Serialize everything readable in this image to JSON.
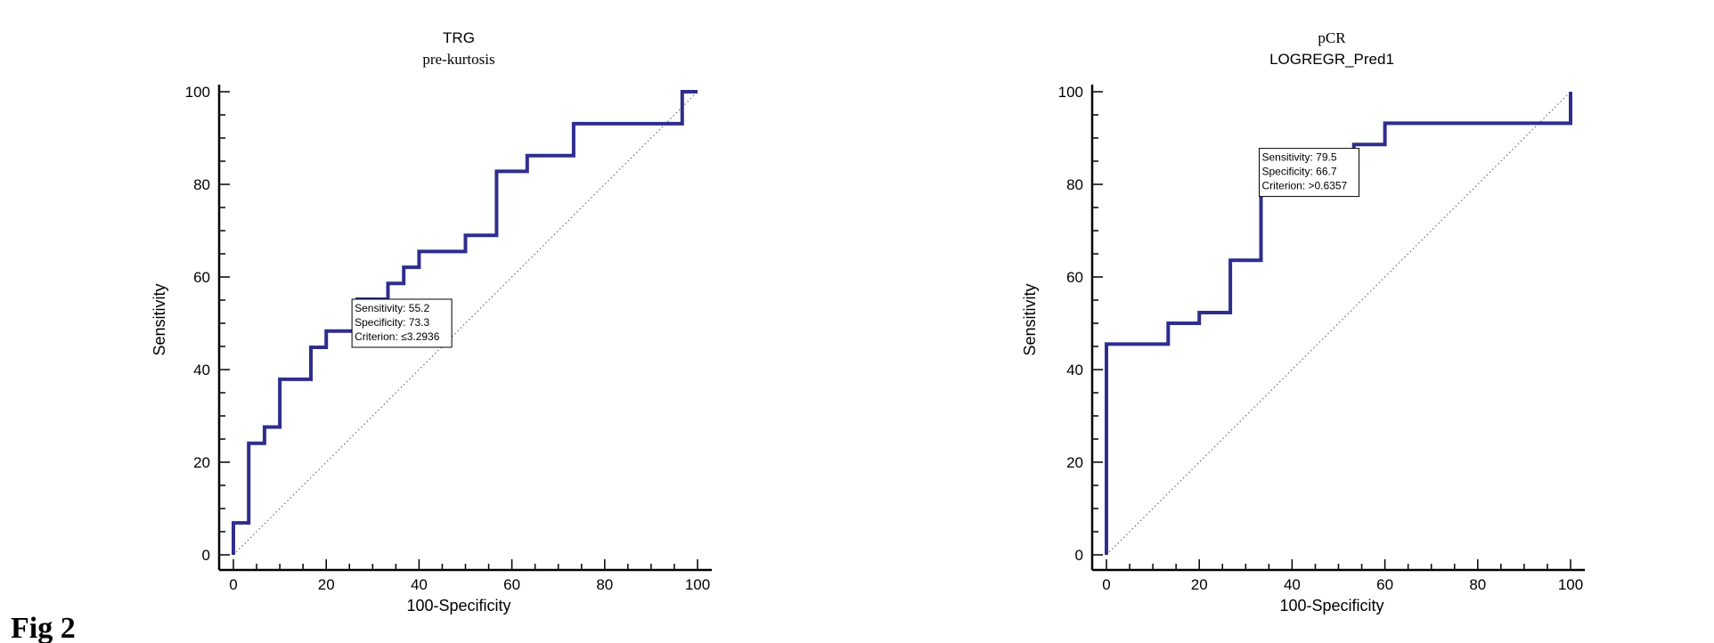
{
  "figure_label": "Fig 2",
  "chart_data": [
    {
      "type": "line",
      "title": "TRG",
      "subtitle": "pre-kurtosis",
      "xlabel": "100-Specificity",
      "ylabel": "Sensitivity",
      "xlim": [
        0,
        100
      ],
      "ylim": [
        0,
        100
      ],
      "xticks": [
        0,
        20,
        40,
        60,
        80,
        100
      ],
      "yticks": [
        0,
        20,
        40,
        60,
        80,
        100
      ],
      "diagonal": true,
      "color": "#2e2e8f",
      "series": [
        {
          "name": "ROC",
          "points": [
            [
              0,
              0
            ],
            [
              0,
              6.9
            ],
            [
              3.3,
              6.9
            ],
            [
              3.3,
              24.1
            ],
            [
              6.7,
              24.1
            ],
            [
              6.7,
              27.6
            ],
            [
              10,
              27.6
            ],
            [
              10,
              37.9
            ],
            [
              16.7,
              37.9
            ],
            [
              16.7,
              44.8
            ],
            [
              20,
              44.8
            ],
            [
              20,
              48.3
            ],
            [
              26.7,
              48.3
            ],
            [
              26.7,
              55.2
            ],
            [
              33.3,
              55.2
            ],
            [
              33.3,
              58.6
            ],
            [
              36.7,
              58.6
            ],
            [
              36.7,
              62.1
            ],
            [
              40,
              62.1
            ],
            [
              40,
              65.5
            ],
            [
              50,
              65.5
            ],
            [
              50,
              69
            ],
            [
              56.7,
              69
            ],
            [
              56.7,
              82.8
            ],
            [
              63.3,
              82.8
            ],
            [
              63.3,
              86.2
            ],
            [
              73.3,
              86.2
            ],
            [
              73.3,
              93.1
            ],
            [
              96.7,
              93.1
            ],
            [
              96.7,
              100
            ],
            [
              100,
              100
            ]
          ]
        }
      ],
      "annotation": {
        "lines": [
          "Sensitivity: 55.2",
          "Specificity: 73.3",
          "Criterion: ≤3.2936"
        ],
        "point": [
          26.7,
          55.2
        ]
      }
    },
    {
      "type": "line",
      "title": "pCR",
      "subtitle": "LOGREGR_Pred1",
      "xlabel": "100-Specificity",
      "ylabel": "Sensitivity",
      "xlim": [
        0,
        100
      ],
      "ylim": [
        0,
        100
      ],
      "xticks": [
        0,
        20,
        40,
        60,
        80,
        100
      ],
      "yticks": [
        0,
        20,
        40,
        60,
        80,
        100
      ],
      "diagonal": true,
      "color": "#2e2e8f",
      "series": [
        {
          "name": "ROC",
          "points": [
            [
              0,
              0
            ],
            [
              0,
              45.5
            ],
            [
              13.3,
              45.5
            ],
            [
              13.3,
              50
            ],
            [
              20,
              50
            ],
            [
              20,
              52.3
            ],
            [
              26.7,
              52.3
            ],
            [
              26.7,
              63.6
            ],
            [
              33.3,
              63.6
            ],
            [
              33.3,
              79.5
            ],
            [
              53.3,
              79.5
            ],
            [
              53.3,
              88.6
            ],
            [
              60,
              88.6
            ],
            [
              60,
              93.2
            ],
            [
              100,
              93.2
            ],
            [
              100,
              100
            ]
          ]
        }
      ],
      "annotation": {
        "lines": [
          "Sensitivity: 79.5",
          "Specificity: 66.7",
          "Criterion: >0.6357"
        ],
        "point": [
          33.3,
          79.5
        ]
      }
    }
  ]
}
